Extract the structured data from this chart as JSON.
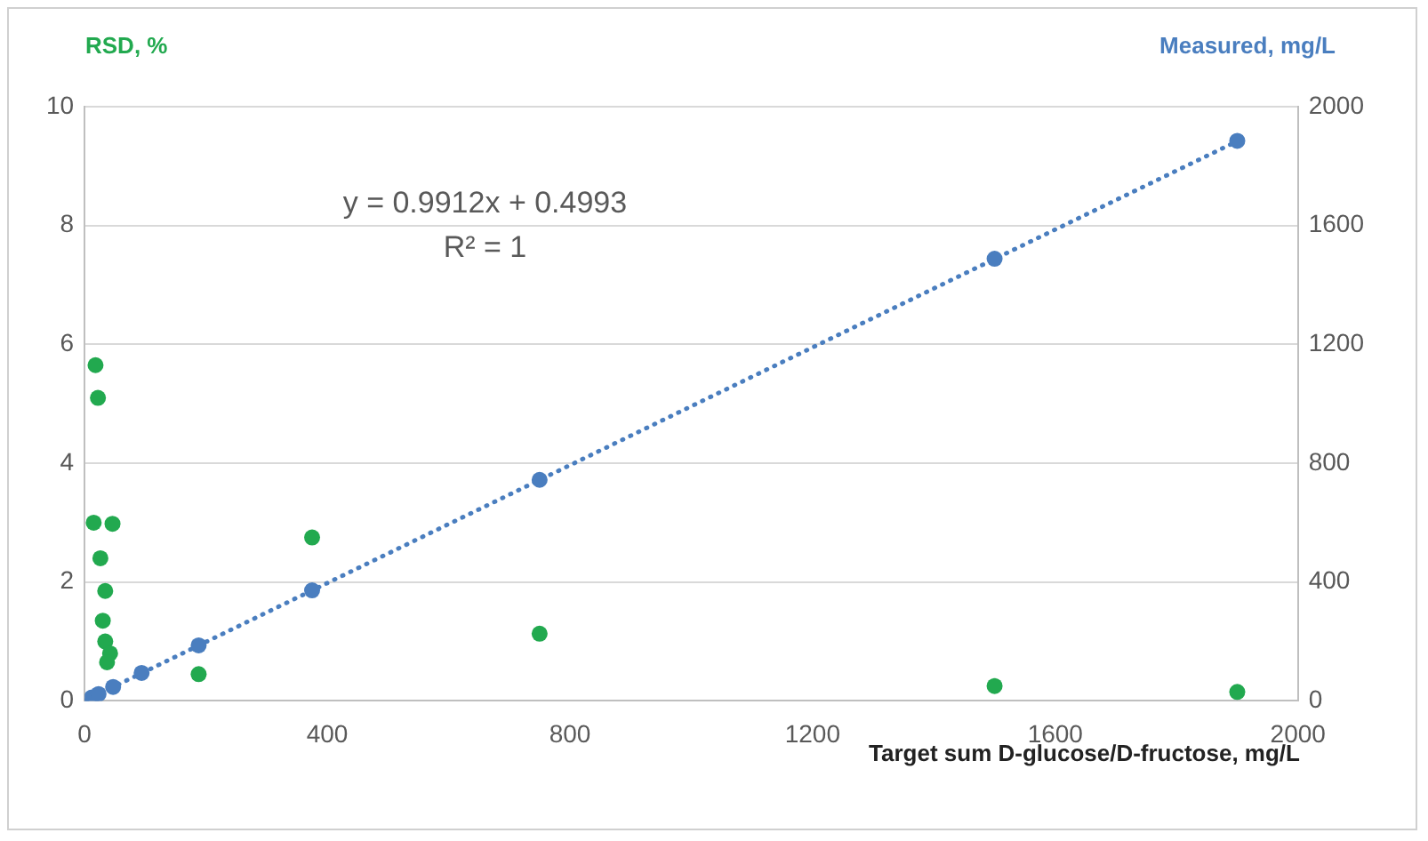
{
  "chart_data": {
    "type": "scatter",
    "xlabel": "Target sum D-glucose/D-fructose, mg/L",
    "ylabel": "RSD, %",
    "y2label": "Measured, mg/L",
    "xlim": [
      0,
      2000
    ],
    "xticks": [
      0,
      400,
      800,
      1200,
      1600,
      2000
    ],
    "ylim": [
      0,
      10
    ],
    "yticks": [
      0,
      2,
      4,
      6,
      8,
      10
    ],
    "y2lim": [
      0,
      2000
    ],
    "y2ticks": [
      0,
      400,
      800,
      1200,
      1600,
      2000
    ],
    "grid": "y",
    "legend": false,
    "marker": "circle",
    "annotations": [
      "y = 0.9912x + 0.4993",
      "R² = 1"
    ],
    "series": [
      {
        "type": "scatter",
        "color": "#22a94f",
        "axis": "y",
        "x": [
          18,
          22,
          15,
          46,
          26,
          34,
          30,
          34,
          42,
          37,
          188,
          375,
          750,
          1500,
          1900
        ],
        "values": [
          5.65,
          5.1,
          3.0,
          2.98,
          2.4,
          1.85,
          1.35,
          1.0,
          0.8,
          0.65,
          0.45,
          2.75,
          1.13,
          0.25,
          0.15
        ]
      },
      {
        "type": "scatter",
        "color": "#4a7ebf",
        "axis": "y2",
        "x": [
          12,
          23,
          47,
          94,
          188,
          375,
          750,
          1500,
          1900
        ],
        "values": [
          12,
          23,
          47,
          94,
          187,
          372,
          744,
          1488,
          1885
        ]
      },
      {
        "type": "line",
        "color": "#4a7ebf",
        "axis": "y2",
        "marker": "none",
        "line_style": "dotted",
        "x": [
          3,
          1900
        ],
        "values": [
          3,
          1884
        ]
      }
    ]
  }
}
